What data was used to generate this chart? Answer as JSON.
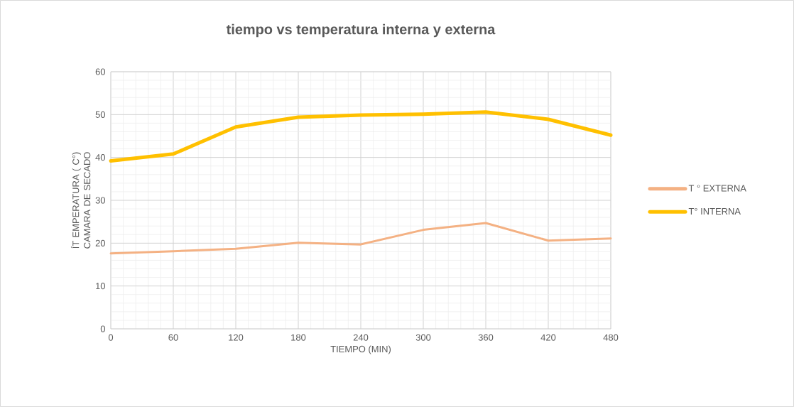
{
  "chart_data": {
    "type": "line",
    "title": "tiempo vs temperatura interna y externa",
    "xlabel": "TIEMPO (MIN)",
    "ylabel": "ÍT EMPERATURA ( C°) CAMARA DE SECADO",
    "x": [
      0,
      60,
      120,
      180,
      240,
      300,
      360,
      420,
      480
    ],
    "series": [
      {
        "name": "T ° EXTERNA",
        "color": "#f4b183",
        "values": [
          17.6,
          18.1,
          18.7,
          20.1,
          19.7,
          23.1,
          24.7,
          20.6,
          21.1
        ]
      },
      {
        "name": "T° INTERNA",
        "color": "#ffc000",
        "values": [
          39.2,
          40.8,
          47.1,
          49.4,
          49.9,
          50.1,
          50.6,
          48.9,
          45.2
        ]
      }
    ],
    "xlim": [
      0,
      480
    ],
    "ylim": [
      0,
      60
    ],
    "xticks": [
      0,
      60,
      120,
      180,
      240,
      300,
      360,
      420,
      480
    ],
    "yticks": [
      0,
      10,
      20,
      30,
      40,
      50,
      60
    ],
    "grid": true,
    "legend": "right",
    "marker": "none",
    "line_style": "solid"
  }
}
